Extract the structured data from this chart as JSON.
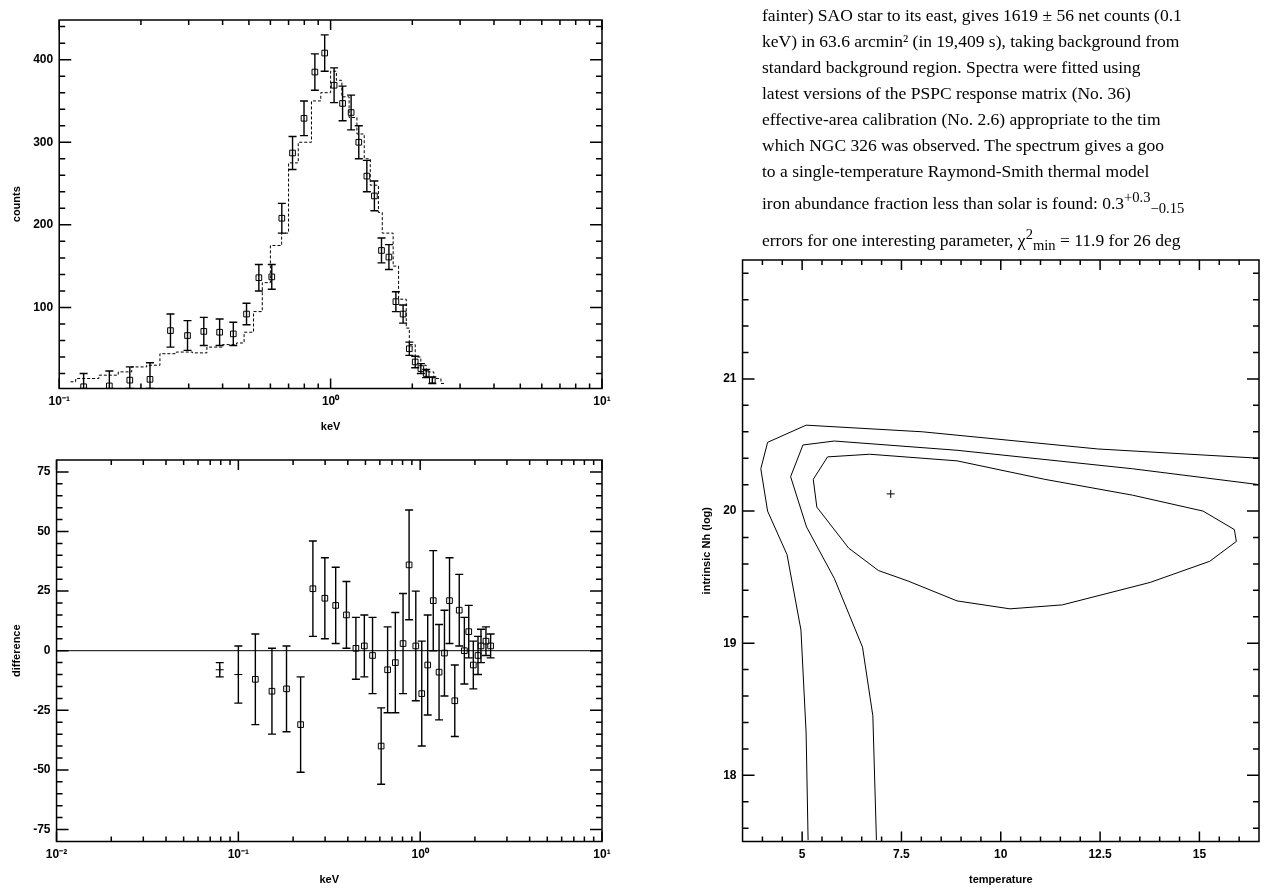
{
  "chart_data": [
    {
      "type": "scatter",
      "xlabel": "keV",
      "ylabel": "counts",
      "log": "x",
      "xlim": [
        0.1,
        10
      ],
      "ylim": [
        2,
        448
      ],
      "xticks": [
        {
          "value": 0.1,
          "label": "10⁻¹"
        },
        {
          "value": 0.2,
          "label": null
        },
        {
          "value": 0.3,
          "label": null
        },
        {
          "value": 0.4,
          "label": null
        },
        {
          "value": 0.5,
          "label": null
        },
        {
          "value": 0.6,
          "label": null
        },
        {
          "value": 0.7,
          "label": null
        },
        {
          "value": 0.8,
          "label": null
        },
        {
          "value": 0.9,
          "label": null
        },
        {
          "value": 1,
          "label": "10⁰"
        },
        {
          "value": 2,
          "label": null
        },
        {
          "value": 3,
          "label": null
        },
        {
          "value": 4,
          "label": null
        },
        {
          "value": 5,
          "label": null
        },
        {
          "value": 6,
          "label": null
        },
        {
          "value": 7,
          "label": null
        },
        {
          "value": 8,
          "label": null
        },
        {
          "value": 9,
          "label": null
        },
        {
          "value": 10,
          "label": "10¹"
        }
      ],
      "yticks": [
        {
          "value": 20,
          "label": null
        },
        {
          "value": 40,
          "label": null
        },
        {
          "value": 60,
          "label": null
        },
        {
          "value": 80,
          "label": null
        },
        100,
        {
          "value": 120,
          "label": null
        },
        {
          "value": 140,
          "label": null
        },
        {
          "value": 160,
          "label": null
        },
        {
          "value": 180,
          "label": null
        },
        200,
        {
          "value": 220,
          "label": null
        },
        {
          "value": 240,
          "label": null
        },
        {
          "value": 260,
          "label": null
        },
        {
          "value": 280,
          "label": null
        },
        300,
        {
          "value": 320,
          "label": null
        },
        {
          "value": 340,
          "label": null
        },
        {
          "value": 360,
          "label": null
        },
        {
          "value": 380,
          "label": null
        },
        400,
        {
          "value": 420,
          "label": null
        },
        {
          "value": 440,
          "label": null
        }
      ],
      "series": [
        {
          "type": "scatter",
          "color": "#000000",
          "marker": "square",
          "x": [
            0.123,
            0.153,
            0.182,
            0.216,
            0.257,
            0.297,
            0.341,
            0.39,
            0.438,
            0.49,
            0.544,
            0.607,
            0.661,
            0.724,
            0.798,
            0.875,
            0.951,
            1.03,
            1.107,
            1.19,
            1.27,
            1.36,
            1.45,
            1.54,
            1.64,
            1.74,
            1.85,
            1.95,
            2.05,
            2.15,
            2.25,
            2.37
          ],
          "values": [
            4,
            5,
            12,
            13,
            72,
            66,
            71,
            70,
            68,
            92,
            136,
            137,
            208,
            287,
            329,
            385,
            408,
            369,
            347,
            336,
            300,
            259,
            235,
            169,
            161,
            107,
            92,
            50,
            34,
            26,
            20,
            12
          ],
          "errors": [
            [
              2,
              20
            ],
            [
              2,
              23
            ],
            [
              2,
              28
            ],
            [
              2,
              33
            ],
            20,
            18,
            17,
            16,
            14,
            13,
            16,
            15,
            18,
            20,
            21,
            22,
            22,
            21,
            21,
            21,
            20,
            19,
            18,
            15,
            15,
            12,
            11,
            8,
            7,
            6,
            5,
            4
          ]
        },
        {
          "type": "line",
          "color": "#000000",
          "marker": "none",
          "line_style": "dashed",
          "x": [
            0.11,
            0.115,
            0.115,
            0.14,
            0.14,
            0.165,
            0.165,
            0.185,
            0.185,
            0.21,
            0.21,
            0.235,
            0.235,
            0.27,
            0.27,
            0.31,
            0.31,
            0.35,
            0.35,
            0.4,
            0.4,
            0.45,
            0.45,
            0.48,
            0.48,
            0.52,
            0.52,
            0.56,
            0.56,
            0.6,
            0.6,
            0.66,
            0.66,
            0.7,
            0.7,
            0.76,
            0.76,
            0.85,
            0.85,
            0.92,
            0.92,
            1.0,
            1.0,
            1.05,
            1.05,
            1.1,
            1.1,
            1.17,
            1.17,
            1.25,
            1.25,
            1.33,
            1.33,
            1.4,
            1.4,
            1.5,
            1.5,
            1.55,
            1.55,
            1.7,
            1.7,
            1.78,
            1.78,
            1.9,
            1.9,
            1.95,
            1.95,
            2.05,
            2.05,
            2.15,
            2.15,
            2.25,
            2.25,
            2.4,
            2.4,
            2.55,
            2.55,
            2.62
          ],
          "values": [
            10,
            10,
            14,
            14,
            18,
            18,
            22,
            22,
            28,
            28,
            30,
            30,
            44,
            44,
            46,
            46,
            45,
            45,
            52,
            52,
            55,
            55,
            57,
            57,
            70,
            70,
            95,
            95,
            130,
            130,
            175,
            175,
            190,
            190,
            275,
            275,
            300,
            300,
            350,
            350,
            360,
            360,
            386,
            386,
            375,
            375,
            355,
            355,
            330,
            330,
            310,
            310,
            280,
            280,
            248,
            248,
            215,
            215,
            190,
            190,
            150,
            150,
            110,
            110,
            75,
            75,
            55,
            55,
            40,
            40,
            30,
            30,
            22,
            22,
            14,
            14,
            8,
            8
          ]
        }
      ]
    },
    {
      "type": "other",
      "annotations": [
        "fainter) SAO star to its east, gives 1619 ± 56 net counts (0.1",
        "keV) in 63.6 arcmin² (in 19,409 s), taking background from",
        "standard background region. Spectra were fitted using",
        "latest versions of the PSPC response matrix (No. 36)",
        "effective-area calibration (No. 2.6) appropriate to the tim",
        "which NGC 326 was observed. The spectrum gives a goo",
        "to a single-temperature Raymond-Smith thermal model",
        "iron abundance fraction less than solar is found: 0.3$^{+0.3}$$_{−0.15}$",
        "errors for one interesting parameter, χ$^{2}$$_{min}$ = 11.9 for 26 deg"
      ]
    },
    {
      "type": "scatter",
      "xlabel": "keV",
      "ylabel": "difference",
      "log": "x",
      "xlim": [
        0.01,
        10
      ],
      "ylim": [
        -80,
        80
      ],
      "xticks": [
        {
          "value": 0.01,
          "label": "10⁻²"
        },
        {
          "value": 0.02,
          "label": null
        },
        {
          "value": 0.03,
          "label": null
        },
        {
          "value": 0.04,
          "label": null
        },
        {
          "value": 0.05,
          "label": null
        },
        {
          "value": 0.06,
          "label": null
        },
        {
          "value": 0.07,
          "label": null
        },
        {
          "value": 0.08,
          "label": null
        },
        {
          "value": 0.09,
          "label": null
        },
        {
          "value": 0.1,
          "label": "10⁻¹"
        },
        {
          "value": 0.2,
          "label": null
        },
        {
          "value": 0.3,
          "label": null
        },
        {
          "value": 0.4,
          "label": null
        },
        {
          "value": 0.5,
          "label": null
        },
        {
          "value": 0.6,
          "label": null
        },
        {
          "value": 0.7,
          "label": null
        },
        {
          "value": 0.8,
          "label": null
        },
        {
          "value": 0.9,
          "label": null
        },
        {
          "value": 1,
          "label": "10⁰"
        },
        {
          "value": 2,
          "label": null
        },
        {
          "value": 3,
          "label": null
        },
        {
          "value": 4,
          "label": null
        },
        {
          "value": 5,
          "label": null
        },
        {
          "value": 6,
          "label": null
        },
        {
          "value": 7,
          "label": null
        },
        {
          "value": 8,
          "label": null
        },
        {
          "value": 9,
          "label": null
        },
        {
          "value": 10,
          "label": "10¹"
        }
      ],
      "yticks": [
        -75,
        {
          "value": -70,
          "label": null
        },
        {
          "value": -65,
          "label": null
        },
        {
          "value": -60,
          "label": null
        },
        {
          "value": -55,
          "label": null
        },
        -50,
        {
          "value": -45,
          "label": null
        },
        {
          "value": -40,
          "label": null
        },
        {
          "value": -35,
          "label": null
        },
        {
          "value": -30,
          "label": null
        },
        -25,
        {
          "value": -20,
          "label": null
        },
        {
          "value": -15,
          "label": null
        },
        {
          "value": -10,
          "label": null
        },
        {
          "value": -5,
          "label": null
        },
        0,
        {
          "value": 5,
          "label": null
        },
        {
          "value": 10,
          "label": null
        },
        {
          "value": 15,
          "label": null
        },
        {
          "value": 20,
          "label": null
        },
        25,
        {
          "value": 30,
          "label": null
        },
        {
          "value": 35,
          "label": null
        },
        {
          "value": 40,
          "label": null
        },
        {
          "value": 45,
          "label": null
        },
        50,
        {
          "value": 55,
          "label": null
        },
        {
          "value": 60,
          "label": null
        },
        {
          "value": 65,
          "label": null
        },
        {
          "value": 70,
          "label": null
        },
        75
      ],
      "ref_lines": [
        {
          "axis": "y",
          "value": 0,
          "color": "#000000"
        }
      ],
      "series": [
        {
          "type": "scatter",
          "color": "#000000",
          "marker": "square",
          "x": [
            0.124,
            0.153,
            0.184,
            0.22,
            0.257,
            0.299,
            0.343,
            0.393,
            0.443,
            0.493,
            0.547,
            0.61,
            0.662,
            0.73,
            0.805,
            0.869,
            0.946,
            1.02,
            1.1,
            1.18,
            1.27,
            1.36,
            1.45,
            1.55,
            1.64,
            1.75,
            1.85,
            1.96,
            2.08,
            2.16,
            2.3,
            2.44
          ],
          "values": [
            -12,
            -17,
            -16,
            -31,
            26,
            22,
            19,
            15,
            1,
            2,
            -2,
            -40,
            -8,
            -5,
            3,
            36,
            2,
            -18,
            -6,
            21,
            -9,
            -1,
            21,
            -21,
            17,
            0,
            8,
            -6,
            -2,
            2,
            4,
            2
          ],
          "errors": [
            19,
            18,
            18,
            20,
            20,
            17,
            16,
            14,
            13,
            13,
            16,
            16,
            18,
            21,
            21,
            23,
            23,
            22,
            21,
            21,
            20,
            18,
            18,
            15,
            15,
            14,
            11,
            10,
            8,
            7,
            6,
            5
          ]
        },
        {
          "type": "scatter",
          "color": "#000000",
          "marker": "cross",
          "x": [
            0.079,
            0.1
          ],
          "values": [
            -8,
            -10
          ],
          "errors": [
            3,
            12
          ]
        }
      ]
    },
    {
      "type": "line",
      "xlabel": "temperature",
      "ylabel": "intrinsic Nh (log)",
      "xlim": [
        3.5,
        16.5
      ],
      "ylim": [
        17.5,
        21.9
      ],
      "xticks": [
        {
          "value": 4,
          "label": null
        },
        {
          "value": 4.5,
          "label": null
        },
        5,
        {
          "value": 5.5,
          "label": null
        },
        {
          "value": 6,
          "label": null
        },
        {
          "value": 6.5,
          "label": null
        },
        {
          "value": 7,
          "label": null
        },
        7.5,
        {
          "value": 8,
          "label": null
        },
        {
          "value": 8.5,
          "label": null
        },
        {
          "value": 9,
          "label": null
        },
        {
          "value": 9.5,
          "label": null
        },
        10,
        {
          "value": 10.5,
          "label": null
        },
        {
          "value": 11,
          "label": null
        },
        {
          "value": 11.5,
          "label": null
        },
        {
          "value": 12,
          "label": null
        },
        12.5,
        {
          "value": 13,
          "label": null
        },
        {
          "value": 13.5,
          "label": null
        },
        {
          "value": 14,
          "label": null
        },
        {
          "value": 14.5,
          "label": null
        },
        15,
        {
          "value": 15.5,
          "label": null
        },
        {
          "value": 16,
          "label": null
        }
      ],
      "yticks": [
        {
          "value": 17.6,
          "label": null
        },
        {
          "value": 17.8,
          "label": null
        },
        18,
        {
          "value": 18.2,
          "label": null
        },
        {
          "value": 18.4,
          "label": null
        },
        {
          "value": 18.6,
          "label": null
        },
        {
          "value": 18.8,
          "label": null
        },
        19,
        {
          "value": 19.2,
          "label": null
        },
        {
          "value": 19.4,
          "label": null
        },
        {
          "value": 19.6,
          "label": null
        },
        {
          "value": 19.8,
          "label": null
        },
        20,
        {
          "value": 20.2,
          "label": null
        },
        {
          "value": 20.4,
          "label": null
        },
        {
          "value": 20.6,
          "label": null
        },
        {
          "value": 20.8,
          "label": null
        },
        21,
        {
          "value": 21.2,
          "label": null
        },
        {
          "value": 21.4,
          "label": null
        },
        {
          "value": 21.6,
          "label": null
        },
        {
          "value": 21.8,
          "label": null
        }
      ],
      "series": [
        {
          "color": "#000000",
          "marker": "none",
          "x": [
            5.15,
            5.1,
            4.97,
            4.62,
            4.13,
            3.96,
            4.13,
            5.1,
            8.02,
            12.44,
            16.5
          ],
          "values": [
            17.51,
            18.32,
            19.1,
            19.67,
            20.0,
            20.32,
            20.52,
            20.65,
            20.6,
            20.47,
            20.4
          ]
        },
        {
          "color": "#000000",
          "marker": "none",
          "x": [
            6.87,
            6.78,
            6.52,
            5.81,
            5.11,
            4.71,
            5.02,
            5.81,
            8.9,
            13.32,
            16.5
          ],
          "values": [
            17.51,
            18.45,
            18.97,
            19.49,
            19.88,
            20.26,
            20.5,
            20.53,
            20.46,
            20.32,
            20.2
          ]
        },
        {
          "color": "#000000",
          "marker": "none",
          "x": [
            5.28,
            5.37,
            6.17,
            6.92,
            7.67,
            8.9,
            10.23,
            11.55,
            13.76,
            15.26,
            15.93
          ],
          "values": [
            20.24,
            20.03,
            19.72,
            19.55,
            19.47,
            19.32,
            19.26,
            19.29,
            19.46,
            19.62,
            19.77
          ]
        },
        {
          "color": "#000000",
          "marker": "none",
          "x": [
            5.28,
            5.64,
            6.7,
            8.9,
            11.11,
            13.32,
            15.09,
            15.88,
            15.93
          ],
          "values": [
            20.24,
            20.41,
            20.43,
            20.38,
            20.24,
            20.12,
            20.0,
            19.86,
            19.77
          ]
        },
        {
          "type": "scatter",
          "color": "#000000",
          "marker": "cross",
          "x": [
            7.23
          ],
          "values": [
            20.13
          ]
        }
      ]
    }
  ]
}
